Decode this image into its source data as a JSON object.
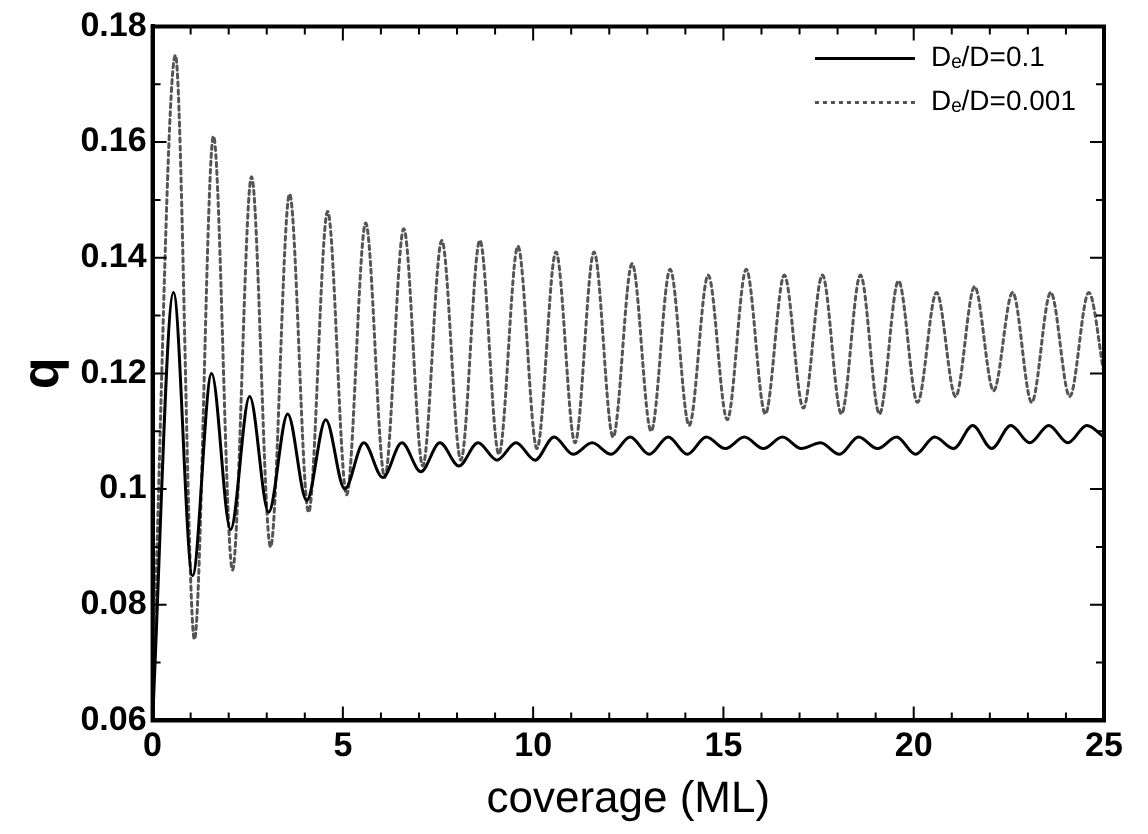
{
  "chart_data": {
    "type": "line",
    "xlabel": "coverage (ML)",
    "ylabel": "q",
    "xlim": [
      0,
      25
    ],
    "ylim": [
      0.06,
      0.18
    ],
    "xticks": [
      0,
      {
        "value": 1,
        "label": null
      },
      {
        "value": 2,
        "label": null
      },
      {
        "value": 3,
        "label": null
      },
      {
        "value": 4,
        "label": null
      },
      5,
      {
        "value": 6,
        "label": null
      },
      {
        "value": 7,
        "label": null
      },
      {
        "value": 8,
        "label": null
      },
      {
        "value": 9,
        "label": null
      },
      10,
      {
        "value": 11,
        "label": null
      },
      {
        "value": 12,
        "label": null
      },
      {
        "value": 13,
        "label": null
      },
      {
        "value": 14,
        "label": null
      },
      15,
      {
        "value": 16,
        "label": null
      },
      {
        "value": 17,
        "label": null
      },
      {
        "value": 18,
        "label": null
      },
      {
        "value": 19,
        "label": null
      },
      20,
      {
        "value": 21,
        "label": null
      },
      {
        "value": 22,
        "label": null
      },
      {
        "value": 23,
        "label": null
      },
      {
        "value": 24,
        "label": null
      },
      25
    ],
    "yticks": [
      0.06,
      {
        "value": 0.07,
        "label": null
      },
      0.08,
      {
        "value": 0.09,
        "label": null
      },
      0.1,
      {
        "value": 0.11,
        "label": null
      },
      0.12,
      {
        "value": 0.13,
        "label": null
      },
      0.14,
      {
        "value": 0.15,
        "label": null
      },
      0.16,
      {
        "value": 0.17,
        "label": null
      },
      0.18
    ],
    "grid": false,
    "legend": "top right",
    "marker": "none",
    "series": [
      {
        "name": "Dₑ/D=0.1",
        "color": "#000000",
        "line_style": "solid",
        "x": [
          0,
          0.55,
          1.05,
          1.55,
          2.05,
          2.55,
          3.05,
          3.55,
          4.05,
          4.55,
          5.05,
          5.55,
          6.05,
          6.55,
          7.05,
          7.55,
          8.05,
          8.55,
          9.05,
          9.55,
          10.05,
          10.55,
          11.05,
          11.55,
          12.05,
          12.55,
          13.05,
          13.55,
          14.05,
          14.55,
          15.05,
          15.55,
          16.05,
          16.55,
          17.05,
          17.55,
          18.05,
          18.55,
          19.05,
          19.55,
          20.05,
          20.55,
          21.05,
          21.55,
          22.05,
          22.55,
          23.05,
          23.55,
          24.05,
          24.55,
          25
        ],
        "values": [
          0.06,
          0.134,
          0.085,
          0.12,
          0.093,
          0.116,
          0.096,
          0.113,
          0.098,
          0.112,
          0.1,
          0.108,
          0.102,
          0.108,
          0.103,
          0.108,
          0.104,
          0.108,
          0.105,
          0.108,
          0.105,
          0.109,
          0.106,
          0.108,
          0.106,
          0.109,
          0.106,
          0.109,
          0.106,
          0.109,
          0.107,
          0.109,
          0.107,
          0.109,
          0.107,
          0.108,
          0.106,
          0.109,
          0.107,
          0.109,
          0.106,
          0.109,
          0.107,
          0.111,
          0.107,
          0.111,
          0.108,
          0.111,
          0.108,
          0.111,
          0.109
        ]
      },
      {
        "name": "Dₑ/D=0.001",
        "color": "#555555",
        "line_style": "dotted",
        "x": [
          0,
          0.6,
          1.1,
          1.6,
          2.1,
          2.6,
          3.1,
          3.6,
          4.1,
          4.6,
          5.1,
          5.6,
          6.1,
          6.6,
          7.1,
          7.6,
          8.1,
          8.6,
          9.1,
          9.6,
          10.1,
          10.6,
          11.1,
          11.6,
          12.1,
          12.6,
          13.1,
          13.6,
          14.1,
          14.6,
          15.1,
          15.6,
          16.1,
          16.6,
          17.1,
          17.6,
          18.1,
          18.6,
          19.1,
          19.6,
          20.1,
          20.6,
          21.1,
          21.6,
          22.1,
          22.6,
          23.1,
          23.6,
          24.1,
          24.6,
          25
        ],
        "values": [
          0.065,
          0.175,
          0.074,
          0.161,
          0.086,
          0.154,
          0.09,
          0.151,
          0.096,
          0.148,
          0.099,
          0.146,
          0.102,
          0.145,
          0.104,
          0.143,
          0.105,
          0.143,
          0.106,
          0.142,
          0.107,
          0.141,
          0.108,
          0.141,
          0.109,
          0.139,
          0.11,
          0.138,
          0.111,
          0.137,
          0.112,
          0.138,
          0.113,
          0.137,
          0.114,
          0.137,
          0.113,
          0.137,
          0.113,
          0.136,
          0.115,
          0.134,
          0.116,
          0.135,
          0.117,
          0.134,
          0.115,
          0.134,
          0.116,
          0.134,
          0.12
        ]
      }
    ]
  }
}
